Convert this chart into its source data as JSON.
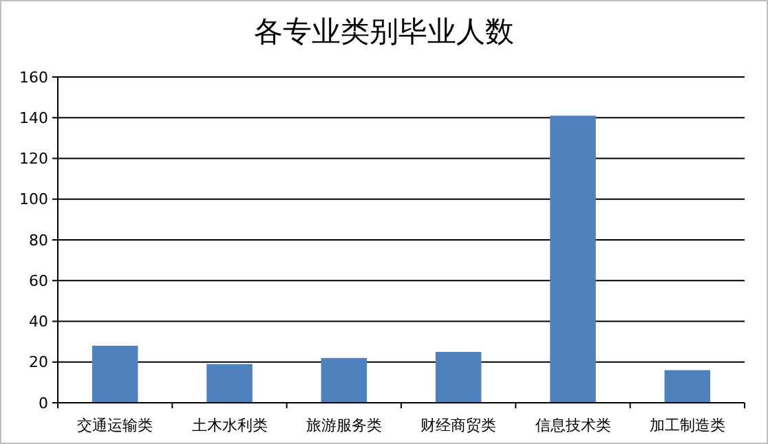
{
  "chart_data": {
    "type": "bar",
    "title": "各专业类别毕业人数",
    "categories": [
      "交通运输类",
      "土木水利类",
      "旅游服务类",
      "财经商贸类",
      "信息技术类",
      "加工制造类"
    ],
    "values": [
      28,
      19,
      22,
      25,
      141,
      16
    ],
    "color": "#4f81bd",
    "ylim": [
      0,
      160
    ],
    "yticks": [
      0,
      20,
      40,
      60,
      80,
      100,
      120,
      140,
      160
    ],
    "grid": "y"
  }
}
